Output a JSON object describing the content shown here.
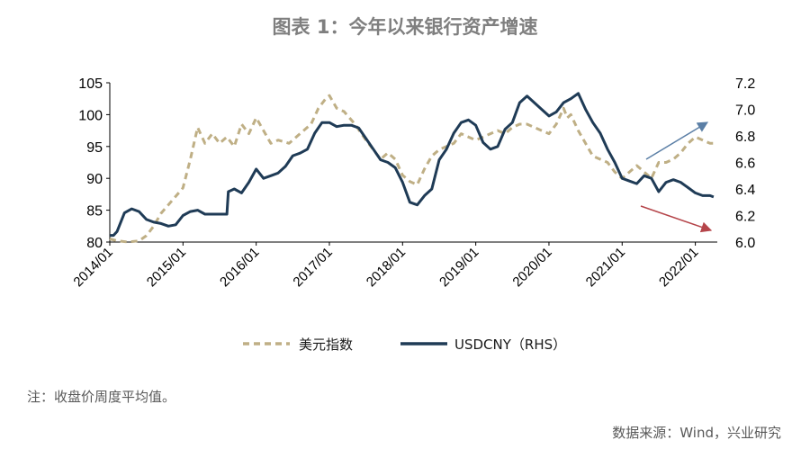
{
  "title": "图表 1：今年以来银行资产增速",
  "note": "注：收盘价周度平均值。",
  "source": "数据来源：Wind，兴业研究",
  "colors": {
    "dxy": "#bfaf85",
    "usdcny": "#1f3b56",
    "up_arrow": "#5b7fa6",
    "down_arrow": "#b5454a"
  },
  "chart_data": {
    "type": "line",
    "x_ticks": [
      "2014/01",
      "2015/01",
      "2016/01",
      "2017/01",
      "2018/01",
      "2019/01",
      "2020/01",
      "2021/01",
      "2022/01"
    ],
    "x_range": [
      2014.0,
      2022.3
    ],
    "y_left": {
      "range": [
        80,
        105
      ],
      "ticks": [
        "80",
        "85",
        "90",
        "95",
        "100",
        "105"
      ]
    },
    "y_right": {
      "range": [
        6.0,
        7.2
      ],
      "ticks": [
        "6.0",
        "6.2",
        "6.4",
        "6.6",
        "6.8",
        "7.0",
        "7.2"
      ]
    },
    "legend_position": "bottom",
    "grid": false,
    "series": [
      {
        "name": "美元指数",
        "axis": "left",
        "style": "dashed",
        "x": [
          2014.0,
          2014.1,
          2014.25,
          2014.4,
          2014.5,
          2014.6,
          2014.7,
          2014.85,
          2015.0,
          2015.1,
          2015.2,
          2015.3,
          2015.4,
          2015.5,
          2015.6,
          2015.7,
          2015.8,
          2015.9,
          2016.0,
          2016.1,
          2016.2,
          2016.3,
          2016.45,
          2016.6,
          2016.75,
          2016.85,
          2016.95,
          2017.0,
          2017.1,
          2017.2,
          2017.35,
          2017.5,
          2017.6,
          2017.7,
          2017.8,
          2017.9,
          2018.0,
          2018.1,
          2018.2,
          2018.3,
          2018.4,
          2018.5,
          2018.6,
          2018.7,
          2018.8,
          2018.9,
          2019.0,
          2019.1,
          2019.2,
          2019.3,
          2019.4,
          2019.5,
          2019.6,
          2019.7,
          2019.8,
          2019.9,
          2020.0,
          2020.1,
          2020.2,
          2020.25,
          2020.3,
          2020.4,
          2020.5,
          2020.6,
          2020.7,
          2020.8,
          2020.9,
          2021.0,
          2021.1,
          2021.2,
          2021.3,
          2021.4,
          2021.5,
          2021.6,
          2021.7,
          2021.8,
          2021.9,
          2022.0,
          2022.1,
          2022.2,
          2022.25
        ],
        "values": [
          80.5,
          80.2,
          80.0,
          80.2,
          81.0,
          82.5,
          84.5,
          86.5,
          88.5,
          93.0,
          98.0,
          95.5,
          97.0,
          95.5,
          96.5,
          95.0,
          98.5,
          97.0,
          99.5,
          97.5,
          95.5,
          96.0,
          95.5,
          97.0,
          98.5,
          101.0,
          102.5,
          103.0,
          101.0,
          100.5,
          98.5,
          96.0,
          94.5,
          93.0,
          94.0,
          93.0,
          90.5,
          89.5,
          89.0,
          91.5,
          93.5,
          94.5,
          95.0,
          95.5,
          97.0,
          96.5,
          96.0,
          96.5,
          97.0,
          97.5,
          97.0,
          98.0,
          98.5,
          98.5,
          98.0,
          97.5,
          97.0,
          98.5,
          101.0,
          99.5,
          100.0,
          97.5,
          95.5,
          93.5,
          93.0,
          92.5,
          91.0,
          90.0,
          91.0,
          92.0,
          91.0,
          90.0,
          92.5,
          92.5,
          93.0,
          94.0,
          95.5,
          96.5,
          96.0,
          95.5,
          95.5
        ]
      },
      {
        "name": "USDCNY（RHS）",
        "axis": "right",
        "style": "solid",
        "x": [
          2014.0,
          2014.05,
          2014.1,
          2014.2,
          2014.3,
          2014.4,
          2014.5,
          2014.6,
          2014.7,
          2014.8,
          2014.9,
          2015.0,
          2015.1,
          2015.2,
          2015.3,
          2015.4,
          2015.5,
          2015.6,
          2015.62,
          2015.7,
          2015.8,
          2015.9,
          2016.0,
          2016.1,
          2016.2,
          2016.3,
          2016.4,
          2016.5,
          2016.55,
          2016.6,
          2016.7,
          2016.8,
          2016.9,
          2017.0,
          2017.1,
          2017.2,
          2017.3,
          2017.4,
          2017.5,
          2017.6,
          2017.7,
          2017.8,
          2017.9,
          2018.0,
          2018.1,
          2018.2,
          2018.3,
          2018.4,
          2018.5,
          2018.6,
          2018.7,
          2018.8,
          2018.9,
          2019.0,
          2019.1,
          2019.2,
          2019.3,
          2019.4,
          2019.5,
          2019.6,
          2019.7,
          2019.8,
          2019.9,
          2020.0,
          2020.1,
          2020.2,
          2020.3,
          2020.4,
          2020.5,
          2020.6,
          2020.7,
          2020.8,
          2020.9,
          2021.0,
          2021.1,
          2021.2,
          2021.3,
          2021.4,
          2021.5,
          2021.6,
          2021.7,
          2021.8,
          2021.9,
          2022.0,
          2022.1,
          2022.2,
          2022.25
        ],
        "values": [
          6.05,
          6.05,
          6.08,
          6.22,
          6.25,
          6.23,
          6.17,
          6.15,
          6.14,
          6.12,
          6.13,
          6.2,
          6.23,
          6.24,
          6.21,
          6.21,
          6.21,
          6.21,
          6.38,
          6.4,
          6.37,
          6.45,
          6.55,
          6.48,
          6.5,
          6.52,
          6.57,
          6.65,
          6.66,
          6.67,
          6.7,
          6.82,
          6.9,
          6.9,
          6.87,
          6.88,
          6.88,
          6.86,
          6.78,
          6.7,
          6.62,
          6.6,
          6.56,
          6.45,
          6.3,
          6.28,
          6.35,
          6.4,
          6.62,
          6.7,
          6.82,
          6.9,
          6.92,
          6.88,
          6.75,
          6.7,
          6.72,
          6.85,
          6.9,
          7.05,
          7.1,
          7.05,
          7.0,
          6.95,
          6.98,
          7.05,
          7.08,
          7.12,
          7.0,
          6.9,
          6.82,
          6.7,
          6.6,
          6.48,
          6.46,
          6.44,
          6.5,
          6.48,
          6.38,
          6.45,
          6.47,
          6.45,
          6.41,
          6.37,
          6.35,
          6.35,
          6.34
        ]
      }
    ]
  }
}
